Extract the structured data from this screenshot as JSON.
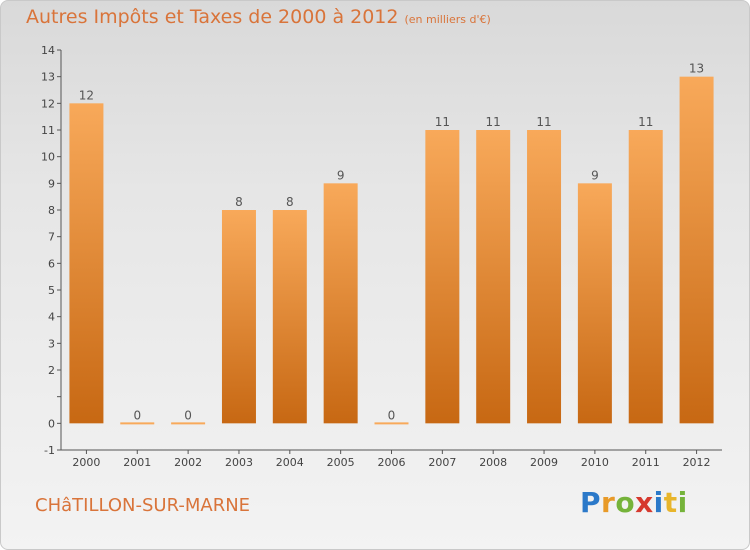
{
  "header": {
    "title": "Autres Impôts et Taxes de 2000 à 2012",
    "subtitle": "(en milliers d'€)"
  },
  "footer": {
    "commune": "CHâTILLON-SUR-MARNE",
    "brand": "Proxiti"
  },
  "colors": {
    "bar_top": "#f8a95a",
    "bar_bottom": "#c76813",
    "title": "#d9743a"
  },
  "chart_data": {
    "type": "bar",
    "title": "Autres Impôts et Taxes de 2000 à 2012",
    "xlabel": "",
    "ylabel": "",
    "categories": [
      "2000",
      "2001",
      "2002",
      "2003",
      "2004",
      "2005",
      "2006",
      "2007",
      "2008",
      "2009",
      "2010",
      "2011",
      "2012"
    ],
    "values": [
      12,
      0,
      0,
      8,
      8,
      9,
      0,
      11,
      11,
      11,
      9,
      11,
      13
    ],
    "data_labels": [
      "12",
      "0",
      "0",
      "8",
      "8",
      "9",
      "0",
      "11",
      "11",
      "11",
      "9",
      "11",
      "13"
    ],
    "ylim": [
      -1,
      14
    ],
    "yticks": [
      -1,
      0,
      1,
      2,
      3,
      4,
      5,
      6,
      7,
      8,
      9,
      10,
      11,
      12,
      13,
      14
    ],
    "ytick_labels": [
      "-1",
      "0",
      "",
      "2",
      "3",
      "4",
      "5",
      "6",
      "7",
      "8",
      "9",
      "10",
      "11",
      "12",
      "13",
      "14"
    ],
    "grid": false,
    "legend": "none"
  }
}
